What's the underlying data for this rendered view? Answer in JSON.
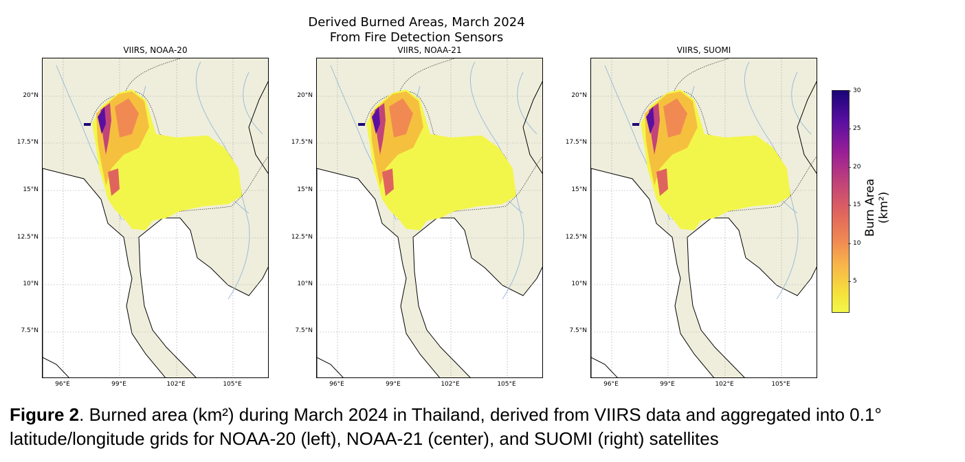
{
  "figure": {
    "title_line1": "Derived Burned Areas, March 2024",
    "title_line2": "From Fire Detection Sensors",
    "panels": [
      {
        "title": "VIIRS, NOAA-20"
      },
      {
        "title": "VIIRS, NOAA-21"
      },
      {
        "title": "VIIRS, SUOMI"
      }
    ],
    "lat_labels": [
      "20°N",
      "17.5°N",
      "15°N",
      "12.5°N",
      "10°N",
      "7.5°N"
    ],
    "lon_labels": [
      "96°E",
      "99°E",
      "102°E",
      "105°E"
    ],
    "colorbar": {
      "label": "Burn Area (km²)",
      "ticks": [
        "30",
        "25",
        "20",
        "15",
        "10",
        "5"
      ],
      "range": [
        1,
        30
      ],
      "colormap": "plasma_r"
    },
    "colors": {
      "land": "#efeedc",
      "ocean": "#ffffff",
      "rivers": "#9bbcd8",
      "burn_low": "#f3f64a",
      "burn_high": "#1a0478"
    }
  },
  "caption": {
    "label": "Figure 2",
    "text": ". Burned area (km²) during March 2024 in Thailand, derived from VIIRS data and aggregated into 0.1° latitude/longitude grids for NOAA-20 (left), NOAA-21 (center), and SUOMI (right) satellites"
  }
}
